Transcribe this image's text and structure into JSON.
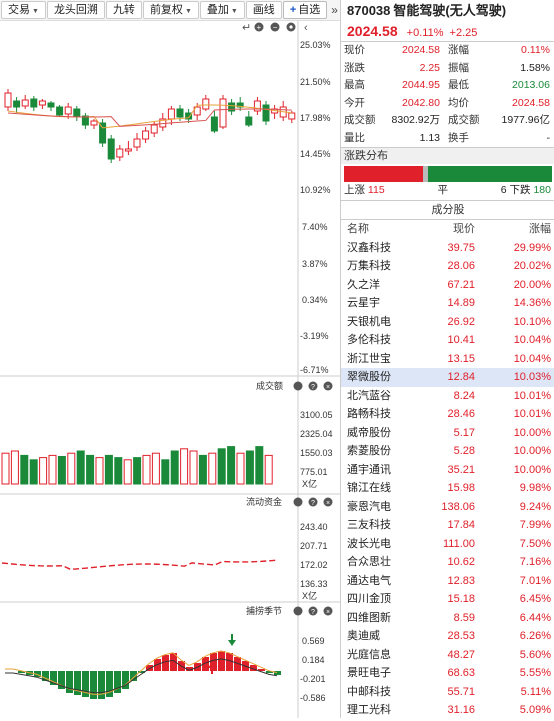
{
  "toolbar": {
    "buttons": [
      {
        "label": "交易",
        "dropdown": true
      },
      {
        "label": "龙头回溯",
        "dropdown": false
      },
      {
        "label": "九转",
        "dropdown": false
      },
      {
        "label": "前复权",
        "dropdown": true
      },
      {
        "label": "叠加",
        "dropdown": true
      },
      {
        "label": "画线",
        "dropdown": false
      },
      {
        "label": "自选",
        "dropdown": false
      }
    ],
    "add_symbol": "+",
    "more": "»"
  },
  "chart": {
    "price_axis": [
      "25.03%",
      "21.50%",
      "17.98%",
      "14.45%",
      "10.92%",
      "7.40%",
      "3.87%",
      "0.34%",
      "-3.19%",
      "-6.71%"
    ],
    "volume_panel": {
      "title": "成交额",
      "axis": [
        "3100.05",
        "2325.04",
        "1550.03",
        "775.01",
        "X亿"
      ]
    },
    "flow_panel": {
      "title": "流动资金",
      "axis": [
        "243.40",
        "207.71",
        "172.02",
        "136.33",
        "X亿"
      ]
    },
    "osc_panel": {
      "title": "捕捞季节",
      "axis": [
        "0.569",
        "0.184",
        "-0.201",
        "-0.586"
      ]
    },
    "colors": {
      "up": "#e0202a",
      "down": "#1a8a3a",
      "ma1": "#e8a33a",
      "ma2": "#d9534f"
    }
  },
  "quote": {
    "code": "870038",
    "name": "智能驾驶(无人驾驶)",
    "price": "2024.58",
    "change_pct": "+0.11%",
    "change": "+2.25",
    "rows": [
      {
        "l1": "现价",
        "v1": "2024.58",
        "c1": "red",
        "l2": "涨幅",
        "v2": "0.11%",
        "c2": "red"
      },
      {
        "l1": "涨跌",
        "v1": "2.25",
        "c1": "red",
        "l2": "振幅",
        "v2": "1.58%",
        "c2": "blk"
      },
      {
        "l1": "最高",
        "v1": "2044.95",
        "c1": "red",
        "l2": "最低",
        "v2": "2013.06",
        "c2": "green"
      },
      {
        "l1": "今开",
        "v1": "2042.80",
        "c1": "red",
        "l2": "均价",
        "v2": "2024.58",
        "c2": "red"
      },
      {
        "l1": "成交额",
        "v1": "8302.92万",
        "c1": "blk",
        "l2": "成交额",
        "v2": "1977.96亿",
        "c2": "blk"
      },
      {
        "l1": "量比",
        "v1": "1.13",
        "c1": "blk",
        "l2": "换手",
        "v2": "-",
        "c2": "blk"
      }
    ]
  },
  "distribution": {
    "title": "涨跌分布",
    "up_label": "上涨",
    "up_count": "115",
    "flat_label": "平",
    "flat_count": "6",
    "down_label": "下跌",
    "down_count": "180"
  },
  "components": {
    "title": "成分股",
    "headers": {
      "name": "名称",
      "price": "现价",
      "change": "涨幅"
    },
    "rows": [
      {
        "name": "汉鑫科技",
        "price": "39.75",
        "change": "29.99%"
      },
      {
        "name": "万集科技",
        "price": "28.06",
        "change": "20.02%"
      },
      {
        "name": "久之洋",
        "price": "67.21",
        "change": "20.00%"
      },
      {
        "name": "云星宇",
        "price": "14.89",
        "change": "14.36%"
      },
      {
        "name": "天银机电",
        "price": "26.92",
        "change": "10.10%"
      },
      {
        "name": "多伦科技",
        "price": "10.41",
        "change": "10.04%"
      },
      {
        "name": "浙江世宝",
        "price": "13.15",
        "change": "10.04%"
      },
      {
        "name": "翠微股份",
        "price": "12.84",
        "change": "10.03%"
      },
      {
        "name": "北汽蓝谷",
        "price": "8.24",
        "change": "10.01%"
      },
      {
        "name": "路畅科技",
        "price": "28.46",
        "change": "10.01%"
      },
      {
        "name": "威帝股份",
        "price": "5.17",
        "change": "10.00%"
      },
      {
        "name": "索菱股份",
        "price": "5.28",
        "change": "10.00%"
      },
      {
        "name": "通宇通讯",
        "price": "35.21",
        "change": "10.00%"
      },
      {
        "name": "锦江在线",
        "price": "15.98",
        "change": "9.98%"
      },
      {
        "name": "豪恩汽电",
        "price": "138.06",
        "change": "9.24%"
      },
      {
        "name": "三友科技",
        "price": "17.84",
        "change": "7.99%"
      },
      {
        "name": "波长光电",
        "price": "111.00",
        "change": "7.50%"
      },
      {
        "name": "合众思壮",
        "price": "10.62",
        "change": "7.16%"
      },
      {
        "name": "通达电气",
        "price": "12.83",
        "change": "7.01%"
      },
      {
        "name": "四川金顶",
        "price": "15.18",
        "change": "6.45%"
      },
      {
        "name": "四维图新",
        "price": "8.59",
        "change": "6.44%"
      },
      {
        "name": "奥迪威",
        "price": "28.53",
        "change": "6.26%"
      },
      {
        "name": "光庭信息",
        "price": "48.27",
        "change": "5.60%"
      },
      {
        "name": "景旺电子",
        "price": "68.63",
        "change": "5.55%"
      },
      {
        "name": "中邮科技",
        "price": "55.71",
        "change": "5.11%"
      },
      {
        "name": "理工光科",
        "price": "31.16",
        "change": "5.09%"
      }
    ]
  }
}
